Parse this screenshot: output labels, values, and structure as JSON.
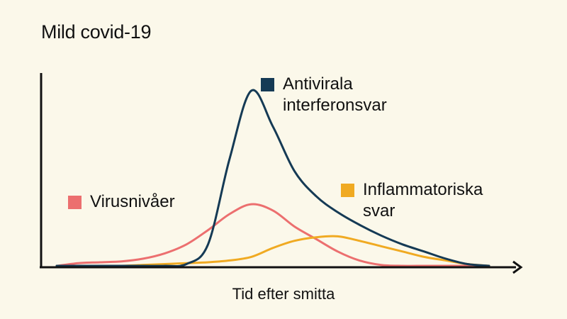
{
  "chart_data": {
    "type": "line",
    "title": "Mild covid-19",
    "xlabel": "Tid efter smitta",
    "ylabel": "",
    "x": [
      0,
      5,
      10,
      15,
      20,
      25,
      30,
      35,
      40,
      45,
      50,
      55,
      60,
      65,
      70,
      75,
      80,
      85,
      90,
      95,
      100
    ],
    "xlim": [
      0,
      100
    ],
    "ylim": [
      0,
      100
    ],
    "grid": false,
    "series": [
      {
        "key": "antiviral",
        "name": "Antivirala\ninterferonsvar",
        "color": "#153a55",
        "values": [
          0,
          0,
          0,
          0,
          0,
          0,
          1,
          12,
          60,
          98,
          78,
          53,
          39,
          30,
          23,
          17,
          12,
          8,
          4,
          1,
          0
        ]
      },
      {
        "key": "virus",
        "name": "Virusnivåer",
        "color": "#ec6f6f",
        "values": [
          0,
          1.5,
          2,
          2.5,
          4,
          7,
          12,
          20,
          29,
          34.5,
          31,
          22,
          15,
          8,
          3,
          0.5,
          0,
          0,
          0,
          0,
          0
        ]
      },
      {
        "key": "inflammation",
        "name": "Inflammatoriska\nsvar",
        "color": "#f0aa22",
        "values": [
          0,
          0,
          0,
          0,
          0.5,
          1,
          1.5,
          2,
          3,
          5,
          10,
          14,
          16,
          16.5,
          14,
          11,
          8,
          5,
          3,
          1,
          0
        ]
      }
    ],
    "legend_placement": "inline"
  }
}
